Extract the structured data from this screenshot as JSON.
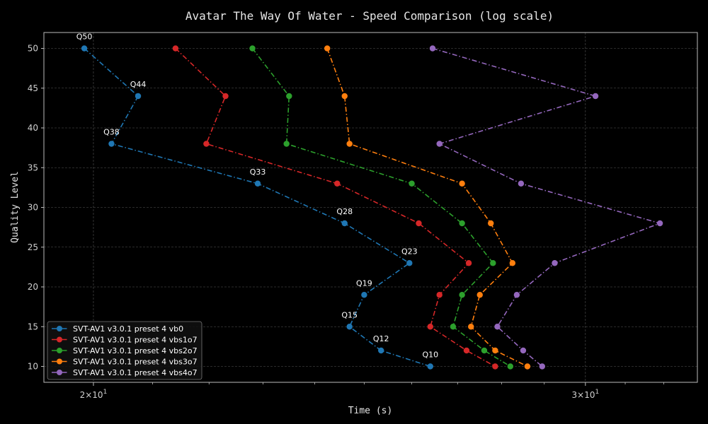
{
  "chart_data": {
    "type": "line",
    "title": "Avatar The Way Of Water - Speed Comparison (log scale)",
    "xlabel": "Time (s)",
    "ylabel": "Quality Level",
    "x_scale": "log",
    "xlim": [
      19.2,
      32.9
    ],
    "ylim": [
      8.0,
      52.0
    ],
    "x_ticks": [
      {
        "value": 20,
        "base": "2×10",
        "exp": "1"
      },
      {
        "value": 30,
        "base": "3×10",
        "exp": "1"
      }
    ],
    "y_ticks": [
      10,
      15,
      20,
      25,
      30,
      35,
      40,
      45,
      50
    ],
    "grid": true,
    "legend_position": "lower-left",
    "line_style": "dash-dot",
    "marker": "circle",
    "series": [
      {
        "name": "SVT-AV1 v3.0.1 preset 4 vb0",
        "color": "#1f77b4",
        "points": [
          {
            "y": 50,
            "x": 19.85
          },
          {
            "y": 44,
            "x": 20.75
          },
          {
            "y": 38,
            "x": 20.3
          },
          {
            "y": 33,
            "x": 22.9
          },
          {
            "y": 28,
            "x": 24.6
          },
          {
            "y": 23,
            "x": 25.95
          },
          {
            "y": 19,
            "x": 25.0
          },
          {
            "y": 15,
            "x": 24.7
          },
          {
            "y": 12,
            "x": 25.35
          },
          {
            "y": 10,
            "x": 26.4
          }
        ]
      },
      {
        "name": "SVT-AV1 v3.0.1 preset 4 vbs1o7",
        "color": "#d62728",
        "points": [
          {
            "y": 50,
            "x": 21.4
          },
          {
            "y": 44,
            "x": 22.3
          },
          {
            "y": 38,
            "x": 21.95
          },
          {
            "y": 33,
            "x": 24.45
          },
          {
            "y": 28,
            "x": 26.15
          },
          {
            "y": 23,
            "x": 27.25
          },
          {
            "y": 19,
            "x": 26.6
          },
          {
            "y": 15,
            "x": 26.4
          },
          {
            "y": 12,
            "x": 27.2
          },
          {
            "y": 10,
            "x": 27.85
          }
        ]
      },
      {
        "name": "SVT-AV1 v3.0.1 preset 4 vbs2o7",
        "color": "#2ca02c",
        "points": [
          {
            "y": 50,
            "x": 22.8
          },
          {
            "y": 44,
            "x": 23.5
          },
          {
            "y": 38,
            "x": 23.45
          },
          {
            "y": 33,
            "x": 26.0
          },
          {
            "y": 28,
            "x": 27.1
          },
          {
            "y": 23,
            "x": 27.8
          },
          {
            "y": 19,
            "x": 27.1
          },
          {
            "y": 15,
            "x": 26.9
          },
          {
            "y": 12,
            "x": 27.6
          },
          {
            "y": 10,
            "x": 28.2
          }
        ]
      },
      {
        "name": "SVT-AV1 v3.0.1 preset 4 vbs3o7",
        "color": "#ff7f0e",
        "points": [
          {
            "y": 50,
            "x": 24.25
          },
          {
            "y": 44,
            "x": 24.6
          },
          {
            "y": 38,
            "x": 24.7
          },
          {
            "y": 33,
            "x": 27.1
          },
          {
            "y": 28,
            "x": 27.75
          },
          {
            "y": 23,
            "x": 28.25
          },
          {
            "y": 19,
            "x": 27.5
          },
          {
            "y": 15,
            "x": 27.3
          },
          {
            "y": 12,
            "x": 27.85
          },
          {
            "y": 10,
            "x": 28.6
          }
        ]
      },
      {
        "name": "SVT-AV1 v3.0.1 preset 4 vbs4o7",
        "color": "#9467bd",
        "points": [
          {
            "y": 50,
            "x": 26.45
          },
          {
            "y": 44,
            "x": 30.25
          },
          {
            "y": 38,
            "x": 26.6
          },
          {
            "y": 33,
            "x": 28.45
          },
          {
            "y": 28,
            "x": 31.9
          },
          {
            "y": 23,
            "x": 29.25
          },
          {
            "y": 19,
            "x": 28.35
          },
          {
            "y": 15,
            "x": 27.9
          },
          {
            "y": 12,
            "x": 28.5
          },
          {
            "y": 10,
            "x": 28.95
          }
        ]
      }
    ],
    "annotations": [
      {
        "text": "Q50",
        "x": 19.85,
        "y": 50
      },
      {
        "text": "Q44",
        "x": 20.75,
        "y": 44
      },
      {
        "text": "Q38",
        "x": 20.3,
        "y": 38
      },
      {
        "text": "Q33",
        "x": 22.9,
        "y": 33
      },
      {
        "text": "Q28",
        "x": 24.6,
        "y": 28
      },
      {
        "text": "Q23",
        "x": 25.95,
        "y": 23
      },
      {
        "text": "Q19",
        "x": 25.0,
        "y": 19
      },
      {
        "text": "Q15",
        "x": 24.7,
        "y": 15
      },
      {
        "text": "Q12",
        "x": 25.35,
        "y": 12
      },
      {
        "text": "Q10",
        "x": 26.4,
        "y": 10
      }
    ]
  }
}
